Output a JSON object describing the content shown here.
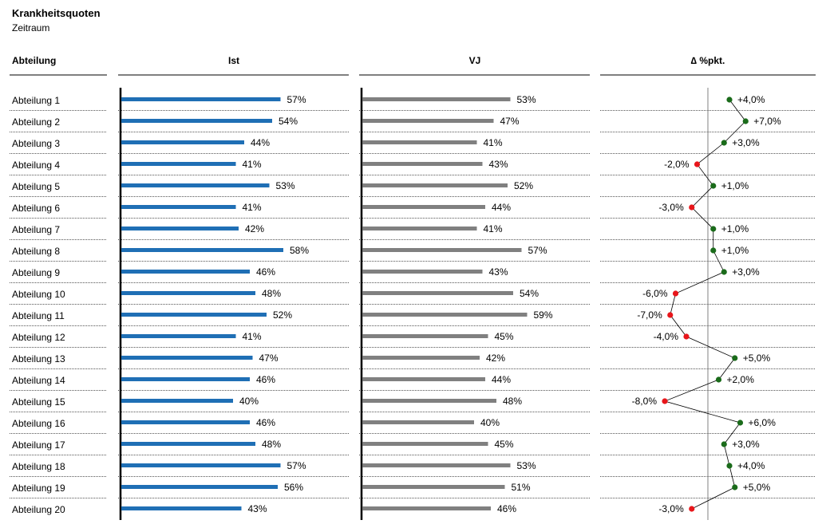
{
  "header": {
    "title": "Krankheitsquoten",
    "subtitle": "Zeitraum"
  },
  "columns": {
    "label": "Abteilung",
    "ist": "Ist",
    "vj": "VJ",
    "delta": "∆ %pkt."
  },
  "colors": {
    "ist_bar": "#1f6fb5",
    "vj_bar": "#808080",
    "delta_positive": "#1a6b1a",
    "delta_negative": "#e8161b",
    "axis": "#000000",
    "delta_axis": "#808080"
  },
  "chart_data": {
    "type": "bar",
    "value_unit": "%",
    "categories": [
      "Abteilung 1",
      "Abteilung 2",
      "Abteilung 3",
      "Abteilung 4",
      "Abteilung 5",
      "Abteilung 6",
      "Abteilung 7",
      "Abteilung 8",
      "Abteilung 9",
      "Abteilung 10",
      "Abteilung 11",
      "Abteilung 12",
      "Abteilung 13",
      "Abteilung 14",
      "Abteilung 15",
      "Abteilung 16",
      "Abteilung 17",
      "Abteilung 18",
      "Abteilung 19",
      "Abteilung 20"
    ],
    "series": [
      {
        "name": "Ist",
        "values": [
          57,
          54,
          44,
          41,
          53,
          41,
          42,
          58,
          46,
          48,
          52,
          41,
          47,
          46,
          40,
          46,
          48,
          57,
          56,
          43
        ]
      },
      {
        "name": "VJ",
        "values": [
          53,
          47,
          41,
          43,
          52,
          44,
          41,
          57,
          43,
          54,
          59,
          45,
          42,
          44,
          48,
          40,
          45,
          53,
          51,
          46
        ]
      },
      {
        "name": "∆ %pkt.",
        "values": [
          4,
          7,
          3,
          -2,
          1,
          -3,
          1,
          1,
          3,
          -6,
          -7,
          -4,
          5,
          2,
          -8,
          6,
          3,
          4,
          5,
          -3
        ]
      }
    ],
    "value_labels": {
      "ist": [
        "57%",
        "54%",
        "44%",
        "41%",
        "53%",
        "41%",
        "42%",
        "58%",
        "46%",
        "48%",
        "52%",
        "41%",
        "47%",
        "46%",
        "40%",
        "46%",
        "48%",
        "57%",
        "56%",
        "43%"
      ],
      "vj": [
        "53%",
        "47%",
        "41%",
        "43%",
        "52%",
        "44%",
        "41%",
        "57%",
        "43%",
        "54%",
        "59%",
        "45%",
        "42%",
        "44%",
        "48%",
        "40%",
        "45%",
        "53%",
        "51%",
        "46%"
      ],
      "delta": [
        "+4,0%",
        "+7,0%",
        "+3,0%",
        "-2,0%",
        "+1,0%",
        "-3,0%",
        "+1,0%",
        "+1,0%",
        "+3,0%",
        "-6,0%",
        "-7,0%",
        "-4,0%",
        "+5,0%",
        "+2,0%",
        "-8,0%",
        "+6,0%",
        "+3,0%",
        "+4,0%",
        "+5,0%",
        "-3,0%"
      ]
    },
    "grid": false
  }
}
